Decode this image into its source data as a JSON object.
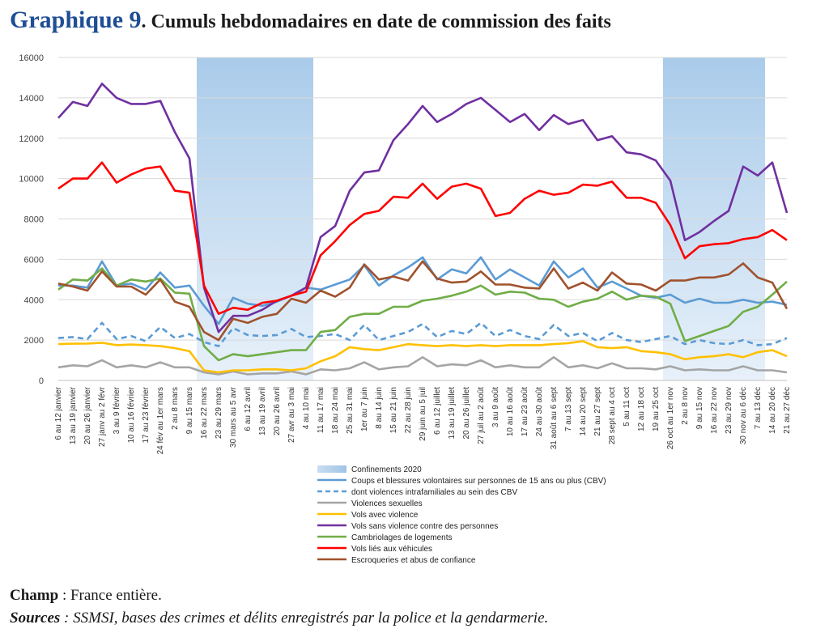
{
  "title": {
    "label": "Graphique 9",
    "text": ". Cumuls hebdomadaires en date de commission des faits"
  },
  "footer": {
    "champ_label": "Champ",
    "champ_text": " : France entière.",
    "sources_label": "Sources",
    "sources_text": " : SSMSI, bases des crimes et délits enregistrés par la police et la gendarmerie."
  },
  "chart_data": {
    "type": "line",
    "ylim": [
      0,
      16000
    ],
    "yticks": [
      0,
      2000,
      4000,
      6000,
      8000,
      10000,
      12000,
      14000,
      16000
    ],
    "grid": true,
    "legend_position": "bottom",
    "x": [
      "6 au 12 janvier",
      "13 au 19 janvier",
      "20 au 26 janvier",
      "27 janv au 2 févr",
      "3 au 9 février",
      "10 au 16 février",
      "17 au 23 février",
      "24 fév au 1er mars",
      "2 au 8 mars",
      "9 au 15 mars",
      "16 au 22 mars",
      "23 au 29 mars",
      "30 mars au 5 avr",
      "6 au 12 avril",
      "13 au 19 avril",
      "20 au 26 avril",
      "27 avr au 3 mai",
      "4 au 10 mai",
      "11 au 17 mai",
      "18 au 24 mai",
      "25 au 31 mai",
      "1er au 7 juin",
      "8 au 14 juin",
      "15 au 21 juin",
      "22 au 28 juin",
      "29 juin au 5 juil",
      "6 au 12 juillet",
      "13 au 19 juillet",
      "20 au 26 juillet",
      "27 juil au 2 août",
      "3 au 9 août",
      "10 au 16 août",
      "17 au 23 août",
      "24 au 30 août",
      "31 août au 6 sept",
      "7 au 13 sept",
      "14 au 20 sept",
      "21 au 27 sept",
      "28 sept au 4 oct",
      "5 au 11 oct",
      "12 au 18 oct",
      "19 au 25 oct",
      "26 oct au 1er nov",
      "2 au 8 nov",
      "9 au 15 nov",
      "16 au 22 nov",
      "23 au 29 nov",
      "30 nov au 6 déc",
      "7 au 13 déc",
      "14 au 20 déc",
      "21 au 27 déc"
    ],
    "x_labels_shown": [
      "6 au 12 janvier",
      "13 au 19 janvier",
      "20 au 26 janvier",
      "27 janv au 2 févr",
      "3 au 9 février",
      "10 au 16 février",
      "17 au 23 février",
      "24 fév au 1er mars",
      "2 au 8 mars",
      "9 au 15 mars",
      "16 au 22 mars",
      "23 au 29 mars",
      "30 mars au 5 avr",
      "6 au 12 avril",
      "13 au 19 avril",
      "20 au 26 avril",
      "27 avr au 3 mai",
      "4 au 10 mai",
      "11 au 17 mai",
      "18 au 24 mai",
      "25 au 31 mai",
      "1er au 7 juin",
      "8 au 14 juin",
      "15 au 21 juin",
      "22 au 28 juin",
      "29 juin au 5 juil",
      "6 au 12 juillet",
      "13 au 19 juillet",
      "20 au 26 juillet",
      "27 juil au 2 août",
      "3 au 9 août",
      "10 au 16 août",
      "17 au 23 août",
      "24 au 30 août",
      "31 août au 6 sept",
      "7 au 13 sept",
      "14 au 20 sept",
      "21 au 27 sept",
      "28 sept au 4 oct",
      "5 au 11 oct",
      "12 au 18 oct",
      "19 au 25 oct",
      "26 oct au 1er nov",
      "2 au 8 nov",
      "9 au 15 nov",
      "16 au 22 nov",
      "23 au 29 nov",
      "30 nov au 6 déc",
      "7 au 13 déc",
      "14 au 20 déc",
      "21 au 27 déc"
    ],
    "shaded_ranges": [
      {
        "name": "Confinements 2020",
        "from": "16 au 22 mars",
        "to": "4 au 10 mai"
      },
      {
        "name": "Confinements 2020",
        "from": "26 oct au 1er nov",
        "to": "7 au 13 déc"
      }
    ],
    "shade_legend_label": "Confinements 2020",
    "series": [
      {
        "name": "Coups et blessures volontaires sur personnes de 15 ans ou plus (CBV)",
        "color": "#5b9bd5",
        "dash": false,
        "values": [
          4700,
          4700,
          4600,
          5900,
          4700,
          4800,
          4500,
          5350,
          4600,
          4700,
          3700,
          2800,
          4100,
          3800,
          3700,
          3900,
          4200,
          4600,
          4500,
          4750,
          5000,
          5700,
          4700,
          5200,
          5600,
          6100,
          5000,
          5500,
          5300,
          6100,
          5000,
          5500,
          5100,
          4700,
          5900,
          5100,
          5550,
          4600,
          4900,
          4550,
          4200,
          4100,
          4250,
          3850,
          4050,
          3850,
          3850,
          4000,
          3850,
          3900,
          3750
        ]
      },
      {
        "name": "dont violences intrafamiliales au sein des CBV",
        "color": "#5b9bd5",
        "dash": true,
        "values": [
          2100,
          2150,
          2050,
          2850,
          2050,
          2200,
          1950,
          2650,
          2100,
          2300,
          1900,
          1700,
          2600,
          2250,
          2200,
          2250,
          2550,
          2150,
          2200,
          2300,
          2000,
          2750,
          2000,
          2200,
          2400,
          2800,
          2150,
          2450,
          2300,
          2850,
          2200,
          2500,
          2200,
          2050,
          2750,
          2200,
          2350,
          1950,
          2350,
          2000,
          1900,
          2050,
          2200,
          1800,
          2000,
          1850,
          1800,
          2000,
          1750,
          1800,
          2100
        ]
      },
      {
        "name": "Violences sexuelles",
        "color": "#a5a5a5",
        "dash": false,
        "values": [
          650,
          750,
          700,
          1000,
          650,
          750,
          650,
          900,
          650,
          650,
          400,
          300,
          450,
          300,
          350,
          350,
          450,
          300,
          550,
          500,
          600,
          900,
          550,
          650,
          700,
          1150,
          700,
          800,
          750,
          1000,
          650,
          750,
          650,
          650,
          1150,
          650,
          750,
          600,
          850,
          600,
          600,
          550,
          700,
          500,
          550,
          500,
          500,
          700,
          500,
          500,
          400
        ]
      },
      {
        "name": "Vols avec violence",
        "color": "#ffc000",
        "dash": false,
        "values": [
          1800,
          1820,
          1830,
          1870,
          1750,
          1780,
          1750,
          1700,
          1600,
          1450,
          500,
          400,
          500,
          500,
          550,
          550,
          500,
          600,
          950,
          1200,
          1650,
          1550,
          1500,
          1650,
          1800,
          1750,
          1700,
          1750,
          1700,
          1750,
          1700,
          1750,
          1750,
          1750,
          1800,
          1850,
          1950,
          1650,
          1600,
          1650,
          1450,
          1400,
          1300,
          1050,
          1150,
          1200,
          1300,
          1150,
          1400,
          1500,
          1200
        ]
      },
      {
        "name": "Vols sans violence contre des personnes",
        "color": "#7030a0",
        "dash": false,
        "values": [
          13000,
          13800,
          13600,
          14700,
          14000,
          13700,
          13700,
          13850,
          12300,
          11000,
          4600,
          2400,
          3200,
          3200,
          3500,
          3950,
          4200,
          4600,
          7100,
          7650,
          9400,
          10300,
          10400,
          11900,
          12700,
          13600,
          12800,
          13200,
          13700,
          14000,
          13400,
          12800,
          13200,
          12400,
          13150,
          12700,
          12900,
          11900,
          12100,
          11300,
          11200,
          10900,
          9900,
          6950,
          7350,
          7900,
          8400,
          10600,
          10150,
          10800,
          8300
        ]
      },
      {
        "name": "Cambriolages de logements",
        "color": "#70ad47",
        "dash": false,
        "values": [
          4500,
          5000,
          4950,
          5550,
          4700,
          5000,
          4900,
          5050,
          4350,
          4300,
          1700,
          1000,
          1300,
          1200,
          1300,
          1400,
          1500,
          1500,
          2400,
          2500,
          3150,
          3300,
          3300,
          3650,
          3650,
          3950,
          4050,
          4200,
          4400,
          4700,
          4250,
          4400,
          4350,
          4050,
          4000,
          3650,
          3900,
          4050,
          4400,
          4000,
          4200,
          4150,
          3800,
          1950,
          2200,
          2450,
          2700,
          3400,
          3650,
          4250,
          4900
        ]
      },
      {
        "name": "Vols liés aux véhicules",
        "color": "#ff0000",
        "dash": false,
        "values": [
          9500,
          10000,
          10000,
          10800,
          9800,
          10200,
          10500,
          10600,
          9400,
          9300,
          4700,
          3300,
          3600,
          3500,
          3850,
          3950,
          4200,
          4400,
          6200,
          6900,
          7700,
          8250,
          8400,
          9100,
          9050,
          9750,
          9000,
          9600,
          9750,
          9500,
          8150,
          8300,
          9000,
          9400,
          9200,
          9300,
          9700,
          9650,
          9850,
          9050,
          9050,
          8800,
          7700,
          6050,
          6650,
          6750,
          6800,
          7000,
          7100,
          7450,
          6950
        ]
      },
      {
        "name": "Escroqueries et abus de confiance",
        "color": "#a0522d",
        "dash": false,
        "values": [
          4800,
          4650,
          4450,
          5400,
          4650,
          4650,
          4250,
          5000,
          3900,
          3650,
          2400,
          2000,
          3050,
          2850,
          3150,
          3300,
          4050,
          3850,
          4450,
          4150,
          4600,
          5750,
          5000,
          5150,
          4950,
          5900,
          5050,
          4850,
          4900,
          5400,
          4750,
          4750,
          4600,
          4550,
          5550,
          4550,
          4850,
          4450,
          5350,
          4800,
          4750,
          4450,
          4950,
          4950,
          5100,
          5100,
          5250,
          5800,
          5100,
          4850,
          3550
        ]
      }
    ]
  }
}
